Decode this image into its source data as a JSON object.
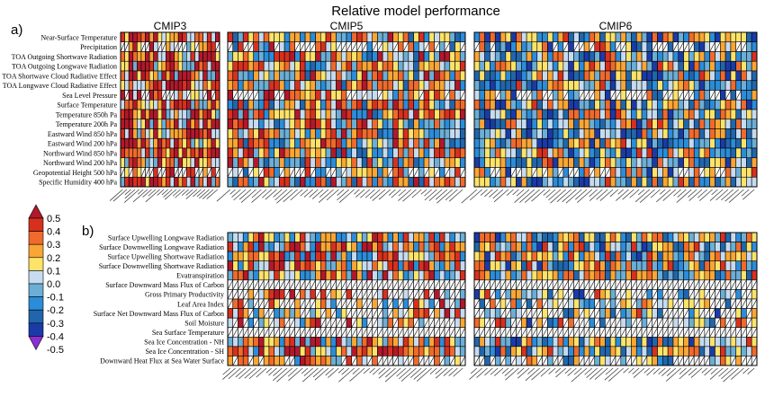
{
  "chart_data": {
    "type": "heatmap",
    "title": "Relative model performance",
    "panel_a": {
      "label": "a)",
      "groups": [
        "CMIP3",
        "CMIP5",
        "CMIP6"
      ],
      "rows": [
        "Near-Surface Temperature",
        "Precipitation",
        "TOA Outgoing Shortwave Radiation",
        "TOA Outgoing Longwave Radiation",
        "TOA Shortwave Cloud Radiative Effect",
        "TOA Longwave Cloud Radiative Effect",
        "Sea Level Pressure",
        "Surface Temperature",
        "Temperature 850h Pa",
        "Temperature 200h Pa",
        "Eastward Wind 850 hPa",
        "Eastward Wind 200 hPa",
        "Northward Wind 850 hPa",
        "Northward Wind 200 hPa",
        "Geopotential Height 500 hPa",
        "Specific Humidity 400 hPa"
      ],
      "model_counts": [
        24,
        46,
        54
      ]
    },
    "panel_b": {
      "label": "b)",
      "groups": [
        "CMIP5",
        "CMIP6"
      ],
      "rows": [
        "Surface Upwelling Longwave Radiation",
        "Surface Downwelling Longwave Radiation",
        "Surface Upwelling Shortwave Radiation",
        "Surface Downwelling Shortwave Radiation",
        "Evatranspiration",
        "Surface Downward Mass Flux of Carbon",
        "Gross Primary Productivity",
        "Leaf Area Index",
        "Surface Net Downward Mass Flux of Carbon",
        "Soil Moisture",
        "Sea Surface Temperature",
        "Sea Ice Concentration - NH",
        "Sea Ice Concentration - SH",
        "Downward Heat Flux at Sea Water Surface"
      ],
      "model_counts": [
        46,
        54
      ]
    },
    "colorbar": {
      "ticks": [
        "0.5",
        "0.4",
        "0.3",
        "0.2",
        "0.1",
        "0.0",
        "-0.1",
        "-0.2",
        "-0.3",
        "-0.4",
        "-0.5"
      ],
      "colors": [
        "#b2182b",
        "#d7301f",
        "#ef6a2c",
        "#f9a635",
        "#fde36a",
        "#c6dbef",
        "#6baed6",
        "#2b8cd9",
        "#2166ac",
        "#1a3aa8",
        "#8b2fd4"
      ]
    },
    "missing_color": "#ffffff",
    "value_range": [
      -0.5,
      0.5
    ]
  }
}
